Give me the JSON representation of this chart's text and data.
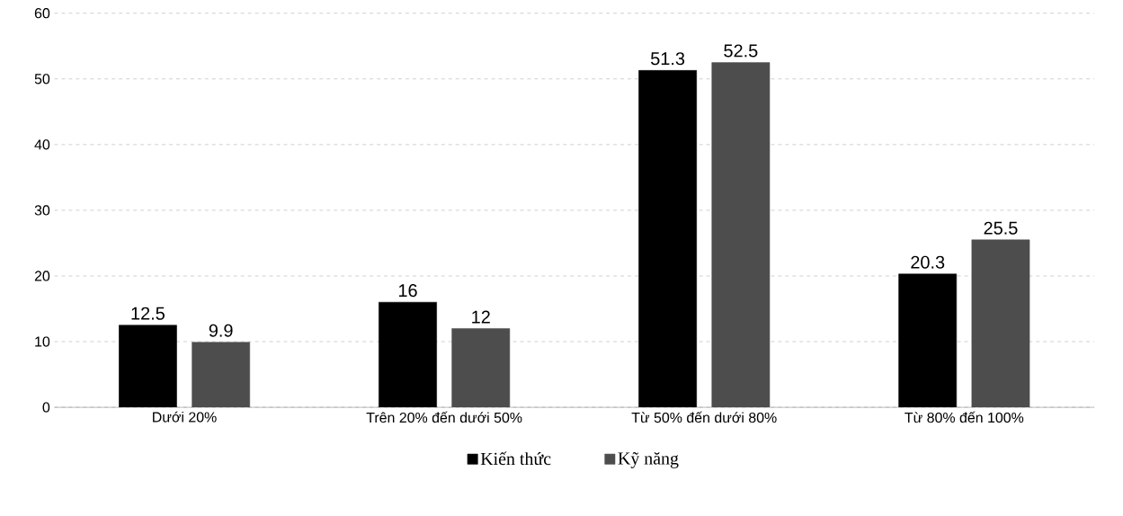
{
  "chart_data": {
    "type": "bar",
    "categories": [
      "Dưới 20%",
      "Trên 20% đến dưới 50%",
      "Từ 50% đến dưới 80%",
      "Từ 80% đến 100%"
    ],
    "series": [
      {
        "name": "Kiến thức",
        "color": "#000000",
        "values": [
          12.5,
          16,
          51.3,
          20.3
        ]
      },
      {
        "name": "Kỹ năng",
        "color": "#4d4d4d",
        "values": [
          9.9,
          12,
          52.5,
          25.5
        ]
      }
    ],
    "ylim": [
      0,
      60
    ],
    "yticks": [
      0,
      10,
      20,
      30,
      40,
      50,
      60
    ],
    "grid": "y",
    "legend": "bottom",
    "data_labels": true
  }
}
